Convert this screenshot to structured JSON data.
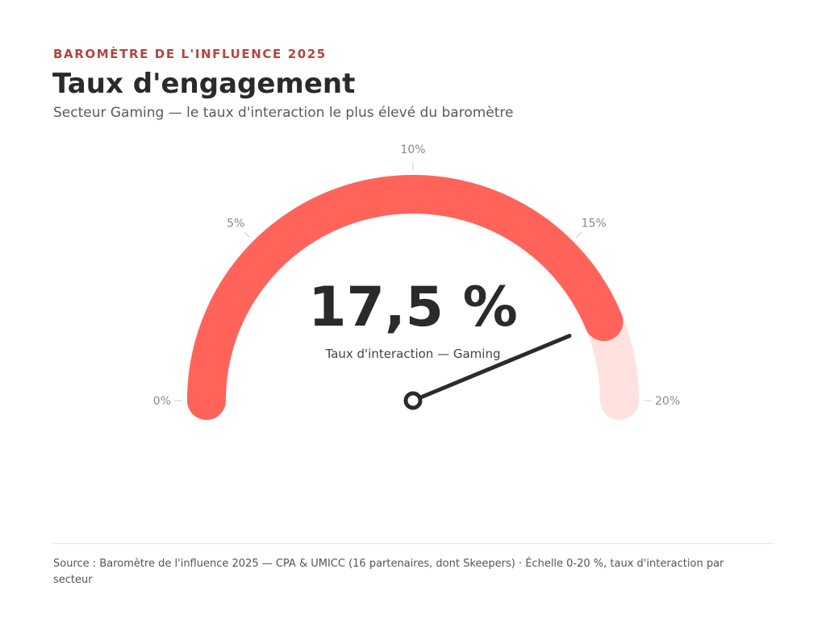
{
  "header": {
    "eyebrow": "BAROMÈTRE DE L'INFLUENCE 2025",
    "title": "Taux d'engagement",
    "subtitle": "Secteur Gaming — le taux d'interaction le plus élevé du baromètre"
  },
  "chart_data": {
    "type": "gauge",
    "value": 17.5,
    "range": [
      0,
      20
    ],
    "value_label": "17,5 %",
    "caption": "Taux d'interaction — Gaming",
    "ticks": [
      {
        "value": 0,
        "label": "0%"
      },
      {
        "value": 5,
        "label": "5%"
      },
      {
        "value": 10,
        "label": "10%"
      },
      {
        "value": 15,
        "label": "15%"
      },
      {
        "value": 20,
        "label": "20%"
      }
    ],
    "colors": {
      "fill": "#ff635a",
      "track": "#ffe1df",
      "needle": "#2b2b2b",
      "tick_text": "#8a8a8a",
      "tick_mark": "#dddddd",
      "value_text": "#2a2a2a"
    }
  },
  "footer": {
    "source": "Source : Baromètre de l'influence 2025 — CPA & UMICC (16 partenaires, dont Skeepers) · Échelle 0-20 %, taux d'interaction par secteur"
  }
}
